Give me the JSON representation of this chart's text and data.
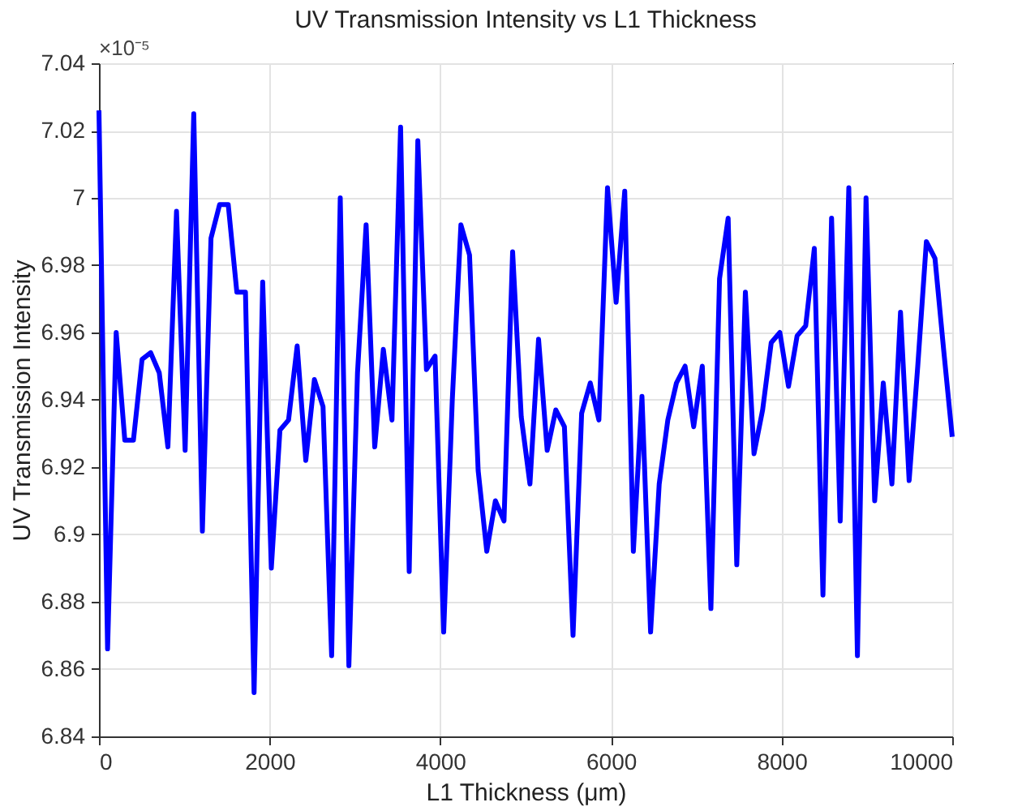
{
  "chart_data": {
    "type": "line",
    "title": "UV Transmission Intensity vs L1 Thickness",
    "xlabel": "L1 Thickness (μm)",
    "ylabel": "UV Transmission Intensity",
    "annotations": [
      "×10⁻⁵"
    ],
    "x": [
      0,
      101,
      202,
      303,
      404,
      505,
      606,
      707,
      808,
      909,
      1010,
      1111,
      1212,
      1313,
      1414,
      1515,
      1616,
      1717,
      1818,
      1919,
      2020,
      2121,
      2222,
      2323,
      2424,
      2525,
      2626,
      2727,
      2828,
      2929,
      3030,
      3131,
      3232,
      3333,
      3434,
      3535,
      3636,
      3737,
      3838,
      3939,
      4040,
      4141,
      4242,
      4343,
      4444,
      4545,
      4646,
      4747,
      4848,
      4949,
      5051,
      5152,
      5253,
      5354,
      5455,
      5556,
      5657,
      5758,
      5859,
      5960,
      6061,
      6162,
      6263,
      6364,
      6465,
      6566,
      6667,
      6768,
      6869,
      6970,
      7071,
      7172,
      7273,
      7374,
      7475,
      7576,
      7677,
      7778,
      7879,
      7980,
      8081,
      8182,
      8283,
      8384,
      8485,
      8586,
      8687,
      8788,
      8889,
      8990,
      9091,
      9192,
      9293,
      9394,
      9495,
      9596,
      9697,
      9798,
      9899,
      10000
    ],
    "series": [
      {
        "color": "#0000ff",
        "values": [
          7.026,
          6.866,
          6.96,
          6.928,
          6.928,
          6.952,
          6.954,
          6.948,
          6.926,
          6.996,
          6.925,
          7.025,
          6.901,
          6.988,
          6.998,
          6.998,
          6.972,
          6.972,
          6.853,
          6.975,
          6.89,
          6.931,
          6.934,
          6.956,
          6.922,
          6.946,
          6.938,
          6.864,
          7.0,
          6.861,
          6.948,
          6.992,
          6.926,
          6.955,
          6.934,
          7.021,
          6.889,
          7.017,
          6.949,
          6.953,
          6.871,
          6.94,
          6.992,
          6.983,
          6.919,
          6.895,
          6.91,
          6.904,
          6.984,
          6.935,
          6.915,
          6.958,
          6.925,
          6.937,
          6.932,
          6.87,
          6.936,
          6.945,
          6.934,
          7.003,
          6.969,
          7.002,
          6.895,
          6.941,
          6.871,
          6.915,
          6.934,
          6.945,
          6.95,
          6.932,
          6.95,
          6.878,
          6.976,
          6.994,
          6.891,
          6.972,
          6.924,
          6.937,
          6.957,
          6.96,
          6.944,
          6.959,
          6.962,
          6.985,
          6.882,
          6.994,
          6.904,
          7.003,
          6.864,
          7.0,
          6.91,
          6.945,
          6.915,
          6.966,
          6.916,
          6.95,
          6.987,
          6.982,
          6.955,
          6.929
        ]
      }
    ],
    "xlim": [
      0,
      10000
    ],
    "xticks": [
      0,
      2000,
      4000,
      6000,
      8000,
      10000
    ],
    "ylim": [
      6.84,
      7.04
    ],
    "yticks": [
      6.84,
      6.86,
      6.88,
      6.9,
      6.92,
      6.94,
      6.96,
      6.98,
      7,
      7.02,
      7.04
    ],
    "grid": true,
    "marker": "none",
    "line_style": "solid"
  }
}
